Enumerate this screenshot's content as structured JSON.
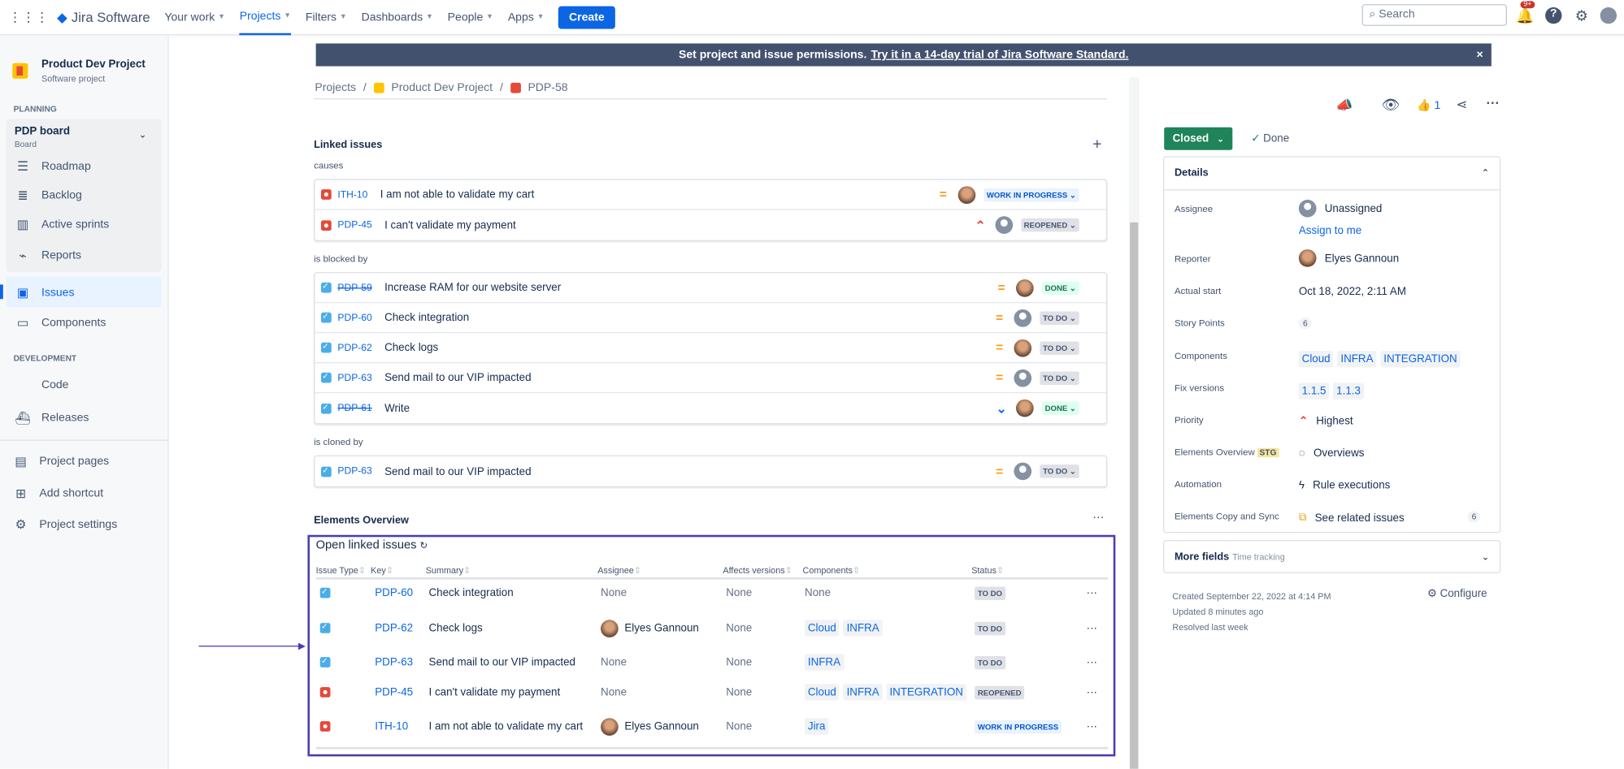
{
  "nav": {
    "app_name": "Jira Software",
    "items": [
      {
        "label": "Your work"
      },
      {
        "label": "Projects",
        "active": true
      },
      {
        "label": "Filters"
      },
      {
        "label": "Dashboards"
      },
      {
        "label": "People"
      },
      {
        "label": "Apps"
      }
    ],
    "create": "Create",
    "search_placeholder": "Search",
    "notification_badge": "9+"
  },
  "sidebar": {
    "project_name": "Product Dev Project",
    "project_type": "Software project",
    "planning": "PLANNING",
    "board_name": "PDP board",
    "board_sub": "Board",
    "planning_items": [
      {
        "label": "Roadmap"
      },
      {
        "label": "Backlog"
      },
      {
        "label": "Active sprints"
      },
      {
        "label": "Reports"
      }
    ],
    "issues": "Issues",
    "components": "Components",
    "development": "DEVELOPMENT",
    "dev_items": [
      {
        "label": "Code"
      },
      {
        "label": "Releases"
      }
    ],
    "bottom_items": [
      {
        "label": "Project pages"
      },
      {
        "label": "Add shortcut"
      },
      {
        "label": "Project settings"
      }
    ]
  },
  "banner": {
    "text": "Set project and issue permissions.",
    "link": "Try it in a 14-day trial of Jira Software Standard."
  },
  "breadcrumb": [
    "Projects",
    "Product Dev Project",
    "PDP-58"
  ],
  "linked": {
    "title": "Linked issues",
    "groups": [
      {
        "label": "causes",
        "rows": [
          {
            "type": "bug",
            "key": "ITH-10",
            "summary": "I am not able to validate my cart",
            "priority": "medium",
            "avatar": "user",
            "status": "WORK IN PROGRESS",
            "status_kind": "wip"
          },
          {
            "type": "bug",
            "key": "PDP-45",
            "summary": "I can't validate my payment",
            "priority": "highest",
            "avatar": "none",
            "status": "REOPENED",
            "status_kind": "default"
          }
        ]
      },
      {
        "label": "is blocked by",
        "rows": [
          {
            "type": "task",
            "key": "PDP-59",
            "summary": "Increase RAM for our website server",
            "priority": "medium",
            "avatar": "user",
            "status": "DONE",
            "status_kind": "done",
            "strike": true
          },
          {
            "type": "task",
            "key": "PDP-60",
            "summary": "Check integration",
            "priority": "medium",
            "avatar": "none",
            "status": "TO DO",
            "status_kind": "default"
          },
          {
            "type": "task",
            "key": "PDP-62",
            "summary": "Check logs",
            "priority": "medium",
            "avatar": "user",
            "status": "TO DO",
            "status_kind": "default"
          },
          {
            "type": "task",
            "key": "PDP-63",
            "summary": "Send mail to our VIP impacted",
            "priority": "medium",
            "avatar": "none",
            "status": "TO DO",
            "status_kind": "default"
          },
          {
            "type": "task",
            "key": "PDP-61",
            "summary": "Write",
            "priority": "lowest",
            "avatar": "user",
            "status": "DONE",
            "status_kind": "done",
            "strike": true
          }
        ]
      },
      {
        "label": "is cloned by",
        "rows": [
          {
            "type": "task",
            "key": "PDP-63",
            "summary": "Send mail to our VIP impacted",
            "priority": "medium",
            "avatar": "none",
            "status": "TO DO",
            "status_kind": "default"
          }
        ]
      }
    ]
  },
  "elements": {
    "title": "Elements Overview",
    "panel_title": "Open linked issues",
    "headers": [
      "Issue Type",
      "Key",
      "Summary",
      "Assignee",
      "Affects versions",
      "Components",
      "Status"
    ],
    "rows": [
      {
        "type": "task",
        "key": "PDP-60",
        "summary": "Check integration",
        "assignee": "None",
        "affects": "None",
        "components": [],
        "components_text": "None",
        "status": "TO DO",
        "status_kind": "default"
      },
      {
        "type": "task",
        "key": "PDP-62",
        "summary": "Check logs",
        "assignee": "Elyes Gannoun",
        "affects": "None",
        "components": [
          "Cloud",
          "INFRA"
        ],
        "status": "TO DO",
        "status_kind": "default"
      },
      {
        "type": "task",
        "key": "PDP-63",
        "summary": "Send mail to our VIP impacted",
        "assignee": "None",
        "affects": "None",
        "components": [
          "INFRA"
        ],
        "status": "TO DO",
        "status_kind": "default"
      },
      {
        "type": "bug",
        "key": "PDP-45",
        "summary": "I can't validate my payment",
        "assignee": "None",
        "affects": "None",
        "components": [
          "Cloud",
          "INFRA",
          "INTEGRATION"
        ],
        "status": "REOPENED",
        "status_kind": "default"
      },
      {
        "type": "bug",
        "key": "ITH-10",
        "summary": "I am not able to validate my cart",
        "assignee": "Elyes Gannoun",
        "affects": "None",
        "components": [
          "Jira"
        ],
        "status": "WORK IN PROGRESS",
        "status_kind": "wip"
      }
    ]
  },
  "issue": {
    "likes": "1",
    "status_button": "Closed",
    "resolution": "Done",
    "details_title": "Details",
    "details": {
      "assignee_label": "Assignee",
      "assignee": "Unassigned",
      "assign_to_me": "Assign to me",
      "reporter_label": "Reporter",
      "reporter": "Elyes Gannoun",
      "actual_start_label": "Actual start",
      "actual_start": "Oct 18, 2022, 2:11 AM",
      "story_points_label": "Story Points",
      "story_points": "6",
      "components_label": "Components",
      "components": [
        "Cloud",
        "INFRA",
        "INTEGRATION"
      ],
      "fix_versions_label": "Fix versions",
      "fix_versions": [
        "1.1.5",
        "1.1.3"
      ],
      "priority_label": "Priority",
      "priority": "Highest",
      "eo_label": "Elements Overview",
      "eo_badge": "STG",
      "eo_value": "Overviews",
      "automation_label": "Automation",
      "automation": "Rule executions",
      "ecs_label": "Elements Copy and Sync",
      "ecs_value": "See related issues",
      "ecs_count": "6"
    },
    "more_fields": "More fields",
    "more_fields_sub": "Time tracking",
    "created": "Created September 22, 2022 at 4:14 PM",
    "updated": "Updated 8 minutes ago",
    "resolved": "Resolved last week",
    "configure": "Configure"
  },
  "colors": {
    "brand": "#0c66e4",
    "closed": "#1f845a",
    "banner": "#42526e",
    "highlight": "#4a3cb3"
  }
}
